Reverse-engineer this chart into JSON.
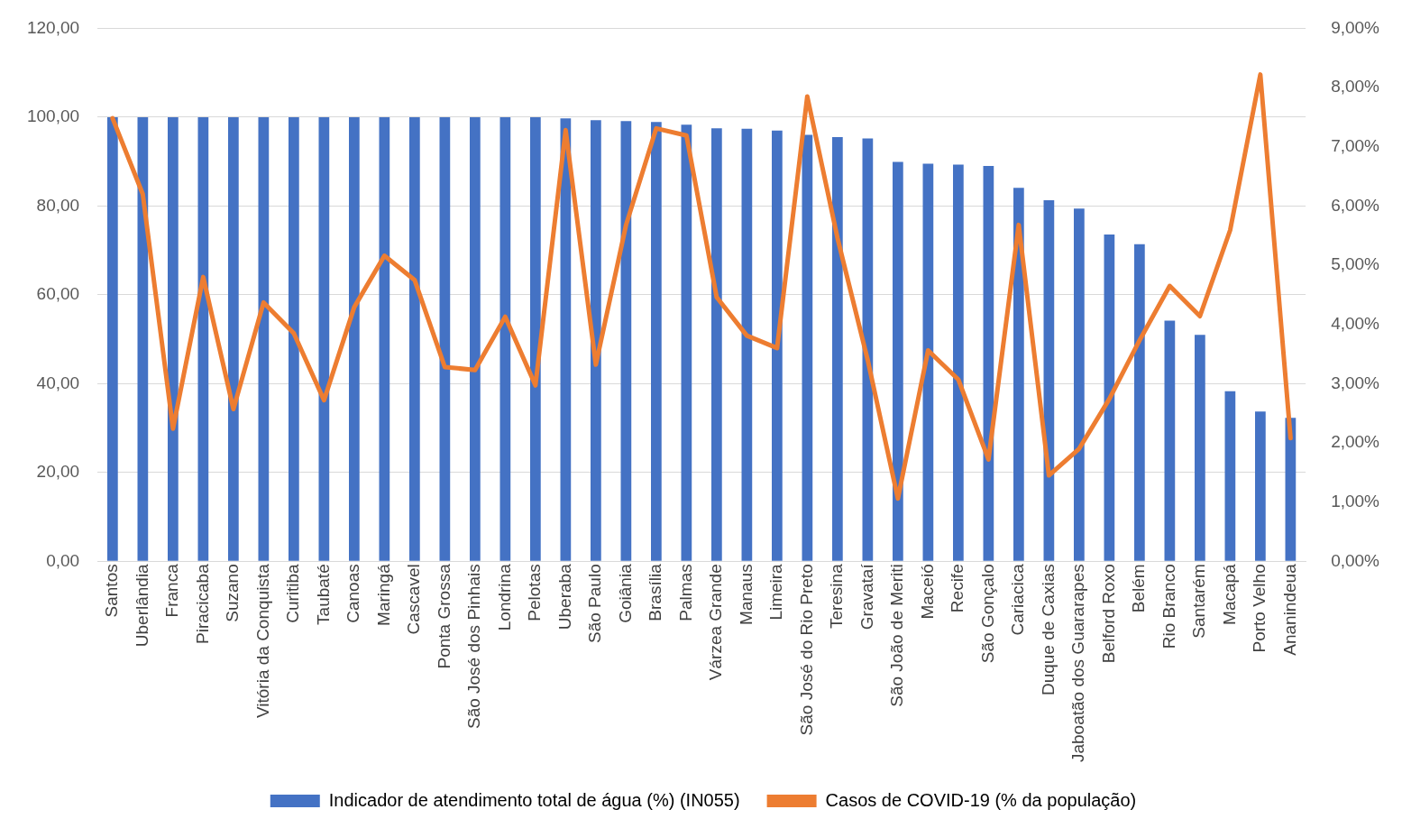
{
  "chart_data": {
    "type": "bar",
    "categories": [
      "Santos",
      "Uberlândia",
      "Franca",
      "Piracicaba",
      "Suzano",
      "Vitória da Conquista",
      "Curitiba",
      "Taubaté",
      "Canoas",
      "Maringá",
      "Cascavel",
      "Ponta Grossa",
      "São José dos Pinhais",
      "Londrina",
      "Pelotas",
      "Uberaba",
      "São Paulo",
      "Goiânia",
      "Brasília",
      "Palmas",
      "Várzea Grande",
      "Manaus",
      "Limeira",
      "São José do Rio Preto",
      "Teresina",
      "Gravataí",
      "São João de Meriti",
      "Maceió",
      "Recife",
      "São Gonçalo",
      "Cariacica",
      "Duque de Caxias",
      "Jaboatão dos Guararapes",
      "Belford Roxo",
      "Belém",
      "Rio Branco",
      "Santarém",
      "Macapá",
      "Porto Velho",
      "Ananindeua"
    ],
    "series": [
      {
        "name": "Indicador de atendimento total de água (%) (IN055)",
        "color": "#4472c4",
        "values": [
          100,
          100,
          100,
          100,
          100,
          100,
          100,
          100,
          100,
          100,
          100,
          100,
          100,
          100,
          100,
          99.7,
          99.3,
          99.1,
          98.9,
          98.3,
          97.5,
          97.4,
          97.0,
          96.0,
          95.5,
          95.2,
          89.9,
          89.5,
          89.3,
          89.0,
          84.1,
          81.3,
          79.4,
          73.6,
          71.4,
          54.2,
          51.0,
          38.3,
          33.7,
          32.3
        ]
      },
      {
        "name": "Casos de COVID-19 (% da população)",
        "color": "#ed7d31",
        "type": "line",
        "axis": "y2",
        "values": [
          7.48,
          6.2,
          2.24,
          4.8,
          2.57,
          4.37,
          3.85,
          2.72,
          4.29,
          5.16,
          4.75,
          3.28,
          3.23,
          4.13,
          2.97,
          7.28,
          3.32,
          5.68,
          7.31,
          7.19,
          4.46,
          3.81,
          3.6,
          7.85,
          5.46,
          3.4,
          1.06,
          3.56,
          3.07,
          1.72,
          5.68,
          1.45,
          1.9,
          2.74,
          3.73,
          4.65,
          4.14,
          5.59,
          8.22,
          2.08
        ]
      }
    ],
    "ylim": [
      0,
      120
    ],
    "yticks": [
      {
        "value": 0,
        "label": "0,00"
      },
      {
        "value": 20,
        "label": "20,00"
      },
      {
        "value": 40,
        "label": "40,00"
      },
      {
        "value": 60,
        "label": "60,00"
      },
      {
        "value": 80,
        "label": "80,00"
      },
      {
        "value": 100,
        "label": "100,00"
      },
      {
        "value": 120,
        "label": "120,00"
      }
    ],
    "y2lim": [
      0,
      9
    ],
    "y2ticks": [
      {
        "value": 0,
        "label": "0,00%"
      },
      {
        "value": 1,
        "label": "1,00%"
      },
      {
        "value": 2,
        "label": "2,00%"
      },
      {
        "value": 3,
        "label": "3,00%"
      },
      {
        "value": 4,
        "label": "4,00%"
      },
      {
        "value": 5,
        "label": "5,00%"
      },
      {
        "value": 6,
        "label": "6,00%"
      },
      {
        "value": 7,
        "label": "7,00%"
      },
      {
        "value": 8,
        "label": "8,00%"
      },
      {
        "value": 9,
        "label": "9,00%"
      }
    ],
    "grid": "y",
    "legend": "bottom",
    "marker": "none",
    "line_style": "solid"
  }
}
